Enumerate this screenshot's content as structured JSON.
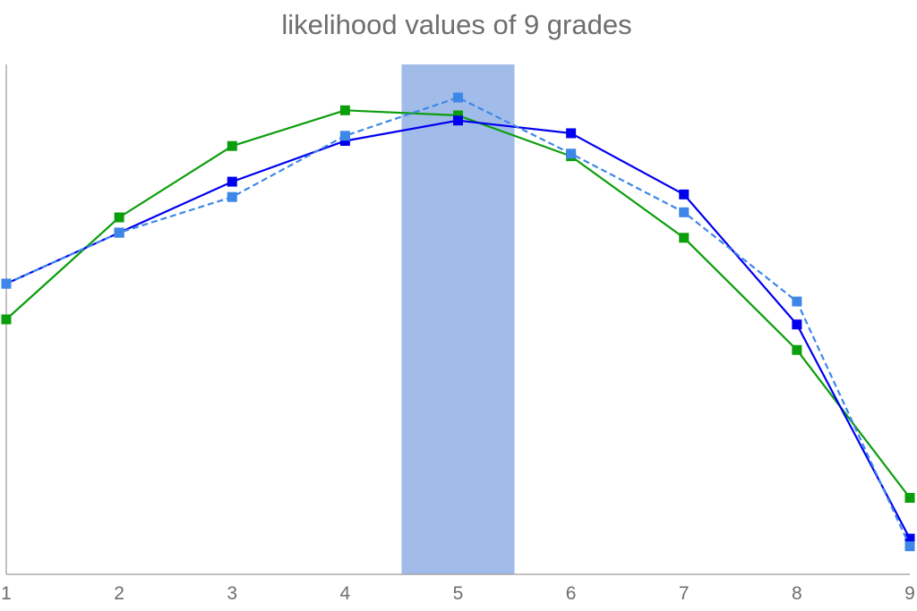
{
  "chart_data": {
    "type": "line",
    "title": "likelihood values of 9 grades",
    "xlabel": "",
    "ylabel": "",
    "x": [
      1,
      2,
      3,
      4,
      5,
      6,
      7,
      8,
      9
    ],
    "ylim": [
      0,
      1
    ],
    "grid": false,
    "legend": "none",
    "highlight": {
      "x_from": 4.5,
      "x_to": 5.5,
      "color": "#a2bcea"
    },
    "series": [
      {
        "color": "#0b9e0b",
        "dash": "solid",
        "values": [
          0.5,
          0.7,
          0.84,
          0.91,
          0.9,
          0.82,
          0.66,
          0.44,
          0.15
        ]
      },
      {
        "color": "#0000ee",
        "dash": "solid",
        "values": [
          0.57,
          0.67,
          0.77,
          0.85,
          0.89,
          0.865,
          0.745,
          0.49,
          0.07
        ]
      },
      {
        "color": "#3d87e8",
        "dash": "dashed",
        "values": [
          0.57,
          0.67,
          0.74,
          0.86,
          0.935,
          0.825,
          0.71,
          0.535,
          0.055
        ]
      }
    ]
  }
}
